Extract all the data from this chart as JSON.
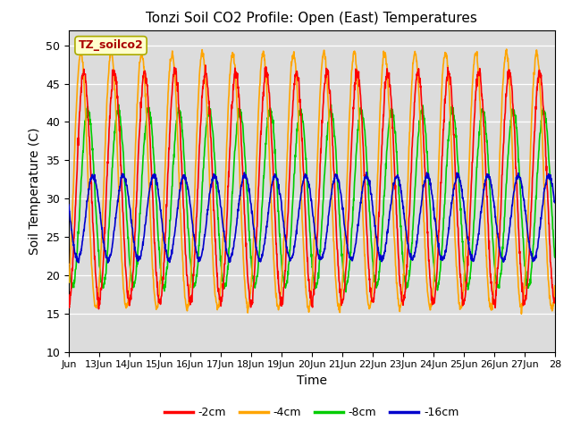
{
  "title": "Tonzi Soil CO2 Profile: Open (East) Temperatures",
  "xlabel": "Time",
  "ylabel": "Soil Temperature (C)",
  "ylim": [
    10,
    52
  ],
  "yticks": [
    10,
    15,
    20,
    25,
    30,
    35,
    40,
    45,
    50
  ],
  "colors": {
    "2cm": "#ff0000",
    "4cm": "#ffa500",
    "8cm": "#00cc00",
    "16cm": "#0000cc"
  },
  "legend_labels": [
    "-2cm",
    "-4cm",
    "-8cm",
    "-16cm"
  ],
  "legend_colors": [
    "#ff0000",
    "#ffa500",
    "#00cc00",
    "#0000cc"
  ],
  "box_label": "TZ_soilco2",
  "background_color": "#dcdcdc",
  "xtick_labels": [
    "Jun",
    "13Jun",
    "14Jun",
    "15Jun",
    "16Jun",
    "17Jun",
    "18Jun",
    "19Jun",
    "20Jun",
    "21Jun",
    "22Jun",
    "23Jun",
    "24Jun",
    "25Jun",
    "26Jun",
    "27Jun",
    "28"
  ],
  "figsize": [
    6.4,
    4.8
  ],
  "dpi": 100,
  "amp_4": 18.0,
  "mean_4": 31.0,
  "phase_4": 0.15,
  "amp_2": 15.0,
  "mean_2": 31.5,
  "phase_2": 0.25,
  "amp_8": 11.5,
  "mean_8": 30.0,
  "phase_8": 0.38,
  "amp_16": 5.5,
  "mean_16": 27.5,
  "phase_16": 0.55
}
